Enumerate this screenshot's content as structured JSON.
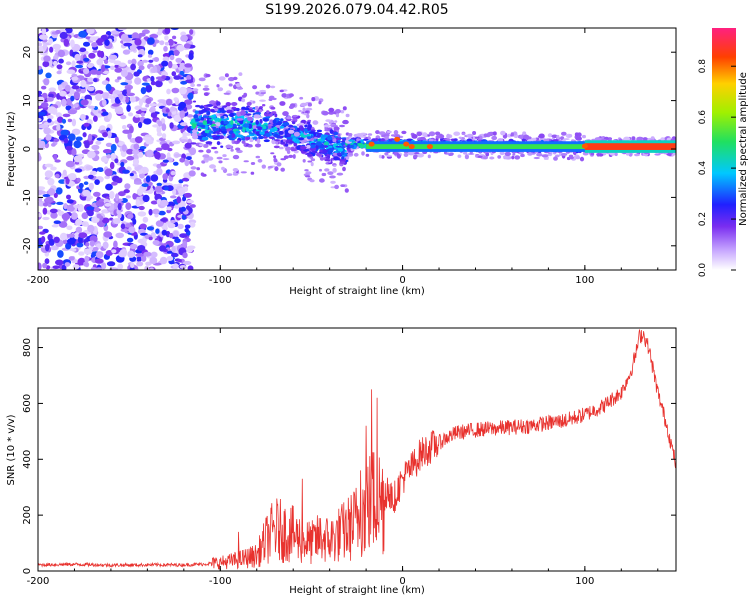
{
  "title": "S199.2026.079.04.42.R05",
  "chart_data": [
    {
      "type": "heatmap",
      "title": "S199.2026.079.04.42.R05",
      "xlabel": "Height of straight line (km)",
      "ylabel": "Frequency (Hz)",
      "xlim": [
        -200,
        150
      ],
      "ylim": [
        -25,
        25
      ],
      "xticks": [
        -200,
        -100,
        0,
        100
      ],
      "yticks": [
        -20,
        -10,
        0,
        10,
        20
      ],
      "colorbar": {
        "label": "Normalized spectral amplitude",
        "range": [
          0,
          0.95
        ],
        "ticks": [
          0,
          0.2,
          0.4,
          0.6,
          0.8
        ]
      },
      "description_bands": [
        {
          "x_range": [
            -200,
            -115
          ],
          "freq_spread": 25,
          "amplitude": 0.15
        },
        {
          "x_range": [
            -115,
            -80
          ],
          "center_freq": [
            5,
            5
          ],
          "freq_spread": 6,
          "amplitude": 0.45
        },
        {
          "x_range": [
            -80,
            -30
          ],
          "center_freq": [
            5,
            0
          ],
          "freq_spread": 5,
          "amplitude": 0.4
        },
        {
          "x_range": [
            -30,
            100
          ],
          "center_freq": [
            1,
            0.5
          ],
          "freq_spread": 1.5,
          "amplitude": 0.5
        },
        {
          "x_range": [
            100,
            150
          ],
          "center_freq": [
            0.5,
            0.5
          ],
          "freq_spread": 1,
          "amplitude": 0.9
        }
      ]
    },
    {
      "type": "line",
      "xlabel": "Height of straight line (km)",
      "ylabel": "SNR (10 * v/v)",
      "xlim": [
        -200,
        150
      ],
      "ylim": [
        0,
        870
      ],
      "xticks": [
        -200,
        -100,
        0,
        100
      ],
      "yticks": [
        0,
        200,
        400,
        600,
        800
      ],
      "color": "#e8322e",
      "series": [
        {
          "name": "SNR",
          "x": [
            -200,
            -180,
            -160,
            -140,
            -120,
            -110,
            -100,
            -90,
            -80,
            -75,
            -70,
            -65,
            -60,
            -55,
            -50,
            -45,
            -40,
            -35,
            -30,
            -25,
            -20,
            -15,
            -10,
            -5,
            0,
            5,
            10,
            15,
            20,
            25,
            30,
            40,
            50,
            60,
            70,
            80,
            90,
            100,
            110,
            120,
            125,
            128,
            130,
            132,
            135,
            140,
            145,
            150
          ],
          "values": [
            22,
            24,
            21,
            22,
            22,
            24,
            30,
            40,
            55,
            110,
            150,
            140,
            130,
            110,
            100,
            120,
            110,
            130,
            150,
            180,
            230,
            260,
            250,
            260,
            330,
            370,
            420,
            440,
            460,
            480,
            495,
            505,
            510,
            515,
            520,
            530,
            540,
            560,
            590,
            640,
            710,
            780,
            840,
            850,
            800,
            640,
            520,
            380
          ],
          "spikes": [
            {
              "x": -17,
              "y": 650
            },
            {
              "x": -14,
              "y": 620
            },
            {
              "x": -20,
              "y": 520
            },
            {
              "x": -23,
              "y": 360
            },
            {
              "x": -55,
              "y": 330
            },
            {
              "x": -90,
              "y": 140
            }
          ],
          "noise": 30
        }
      ]
    }
  ]
}
